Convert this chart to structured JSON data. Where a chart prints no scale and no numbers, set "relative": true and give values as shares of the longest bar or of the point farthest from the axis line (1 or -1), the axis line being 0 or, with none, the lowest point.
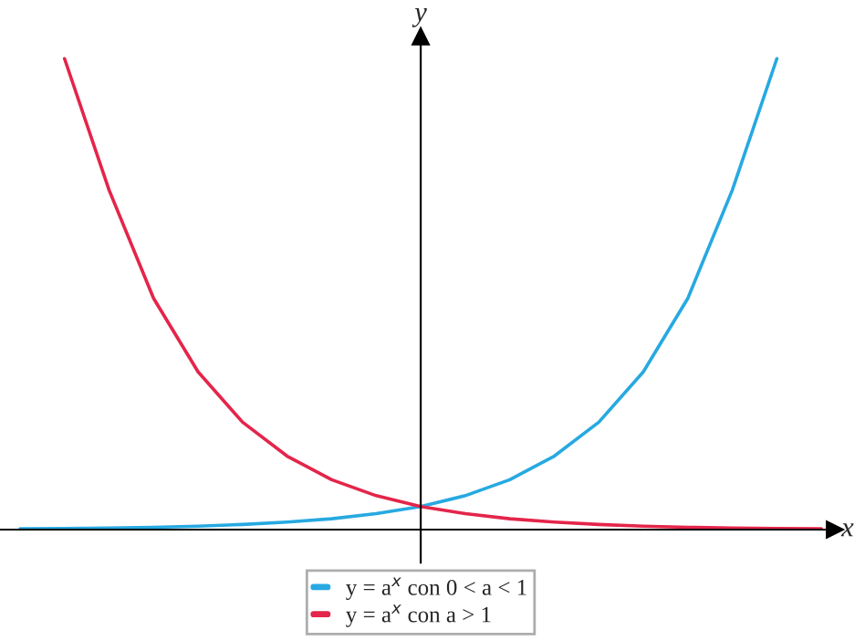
{
  "chart_data": {
    "type": "line",
    "relative": true,
    "xlabel": "x",
    "ylabel": "y",
    "legend": "bottom",
    "tick_labels": false,
    "marker": "none",
    "line_style": "solid",
    "categories": [
      null,
      null,
      null,
      null,
      null,
      null,
      null,
      null,
      null,
      null,
      null,
      null,
      null,
      null,
      null,
      null,
      null,
      null,
      null
    ],
    "series": [
      {
        "name": "y = a$^{x}$ con 0 < a < 1",
        "color": "#27a9e1",
        "values": [
          0.0016,
          0.0023,
          0.0034,
          0.0049,
          0.0072,
          0.011,
          0.016,
          0.023,
          0.034,
          0.049,
          0.072,
          0.106,
          0.156,
          0.228,
          0.335,
          0.491,
          0.721,
          1.0,
          null
        ]
      },
      {
        "name": "y = a$^{x}$ con a > 1",
        "color": "#e4254a",
        "values": [
          null,
          1.0,
          0.721,
          0.491,
          0.335,
          0.228,
          0.156,
          0.106,
          0.072,
          0.049,
          0.034,
          0.023,
          0.016,
          0.011,
          0.0072,
          0.0049,
          0.0034,
          0.0023,
          0.0016
        ]
      }
    ]
  }
}
